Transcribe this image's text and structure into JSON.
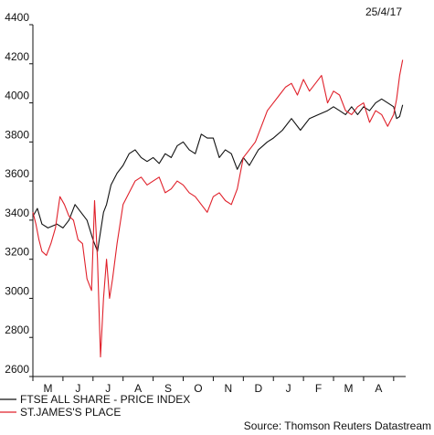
{
  "date": "25/4/17",
  "source": "Source: Thomson Reuters Datastream",
  "colors": {
    "ftse": "#111111",
    "stj": "#e0202a",
    "axis": "#111111"
  },
  "legend": [
    {
      "label": "FTSE ALL SHARE - PRICE INDEX",
      "color": "#111111"
    },
    {
      "label": "ST.JAMES'S PLACE",
      "color": "#e0202a"
    }
  ],
  "chart_data": {
    "type": "line",
    "title": "",
    "xlabel": "",
    "ylabel": "",
    "ylim": [
      2600,
      4400
    ],
    "yticks": [
      2600,
      2800,
      3000,
      3200,
      3400,
      3600,
      3800,
      4000,
      4200,
      4400
    ],
    "xlim": [
      0,
      12.4
    ],
    "month_labels": [
      "M",
      "J",
      "J",
      "A",
      "S",
      "O",
      "N",
      "D",
      "J",
      "F",
      "M",
      "A"
    ],
    "legend_position": "bottom-left",
    "grid": false,
    "series": [
      {
        "name": "FTSE ALL SHARE - PRICE INDEX",
        "color": "#111111",
        "x": [
          0,
          0.15,
          0.3,
          0.5,
          0.8,
          1.0,
          1.2,
          1.4,
          1.6,
          1.8,
          2.0,
          2.15,
          2.35,
          2.45,
          2.6,
          2.8,
          3.0,
          3.2,
          3.4,
          3.6,
          3.8,
          4.0,
          4.2,
          4.4,
          4.6,
          4.8,
          5.0,
          5.2,
          5.4,
          5.6,
          5.8,
          6.0,
          6.2,
          6.4,
          6.6,
          6.8,
          7.0,
          7.2,
          7.5,
          7.8,
          8.0,
          8.3,
          8.6,
          8.9,
          9.2,
          9.5,
          9.8,
          10.0,
          10.2,
          10.4,
          10.6,
          10.8,
          11.0,
          11.2,
          11.4,
          11.6,
          11.8,
          12.0,
          12.1,
          12.2,
          12.3
        ],
        "values": [
          3420,
          3460,
          3380,
          3360,
          3380,
          3360,
          3400,
          3480,
          3440,
          3400,
          3300,
          3240,
          3440,
          3480,
          3580,
          3640,
          3680,
          3740,
          3760,
          3720,
          3700,
          3720,
          3690,
          3740,
          3720,
          3780,
          3800,
          3760,
          3740,
          3840,
          3820,
          3820,
          3720,
          3760,
          3740,
          3660,
          3720,
          3680,
          3760,
          3800,
          3820,
          3860,
          3920,
          3860,
          3920,
          3940,
          3960,
          3980,
          3960,
          3940,
          3980,
          3940,
          3980,
          3960,
          4000,
          4020,
          4000,
          3980,
          3920,
          3930,
          3990
        ]
      },
      {
        "name": "ST.JAMES'S PLACE",
        "color": "#e0202a",
        "x": [
          0,
          0.1,
          0.2,
          0.3,
          0.45,
          0.6,
          0.75,
          0.9,
          1.05,
          1.2,
          1.35,
          1.5,
          1.65,
          1.8,
          1.95,
          2.05,
          2.15,
          2.25,
          2.35,
          2.45,
          2.55,
          2.65,
          2.8,
          3.0,
          3.2,
          3.4,
          3.6,
          3.8,
          4.0,
          4.2,
          4.4,
          4.6,
          4.8,
          5.0,
          5.2,
          5.4,
          5.6,
          5.8,
          6.0,
          6.2,
          6.4,
          6.6,
          6.8,
          7.0,
          7.2,
          7.4,
          7.6,
          7.8,
          8.0,
          8.2,
          8.4,
          8.6,
          8.8,
          9.0,
          9.2,
          9.4,
          9.6,
          9.8,
          10.0,
          10.2,
          10.4,
          10.6,
          10.8,
          11.0,
          11.2,
          11.4,
          11.6,
          11.8,
          12.0,
          12.1,
          12.2,
          12.3
        ],
        "values": [
          3440,
          3380,
          3300,
          3240,
          3220,
          3280,
          3360,
          3520,
          3480,
          3420,
          3400,
          3300,
          3280,
          3100,
          3040,
          3500,
          3200,
          2700,
          3000,
          3200,
          3000,
          3100,
          3280,
          3480,
          3540,
          3600,
          3620,
          3580,
          3600,
          3620,
          3540,
          3560,
          3600,
          3580,
          3540,
          3520,
          3480,
          3440,
          3520,
          3540,
          3500,
          3480,
          3560,
          3720,
          3760,
          3800,
          3880,
          3960,
          4000,
          4040,
          4080,
          4100,
          4040,
          4120,
          4060,
          4100,
          4140,
          4000,
          4060,
          4040,
          3960,
          3940,
          3980,
          4000,
          3900,
          3960,
          3940,
          3880,
          3940,
          4020,
          4140,
          4220
        ]
      }
    ]
  }
}
